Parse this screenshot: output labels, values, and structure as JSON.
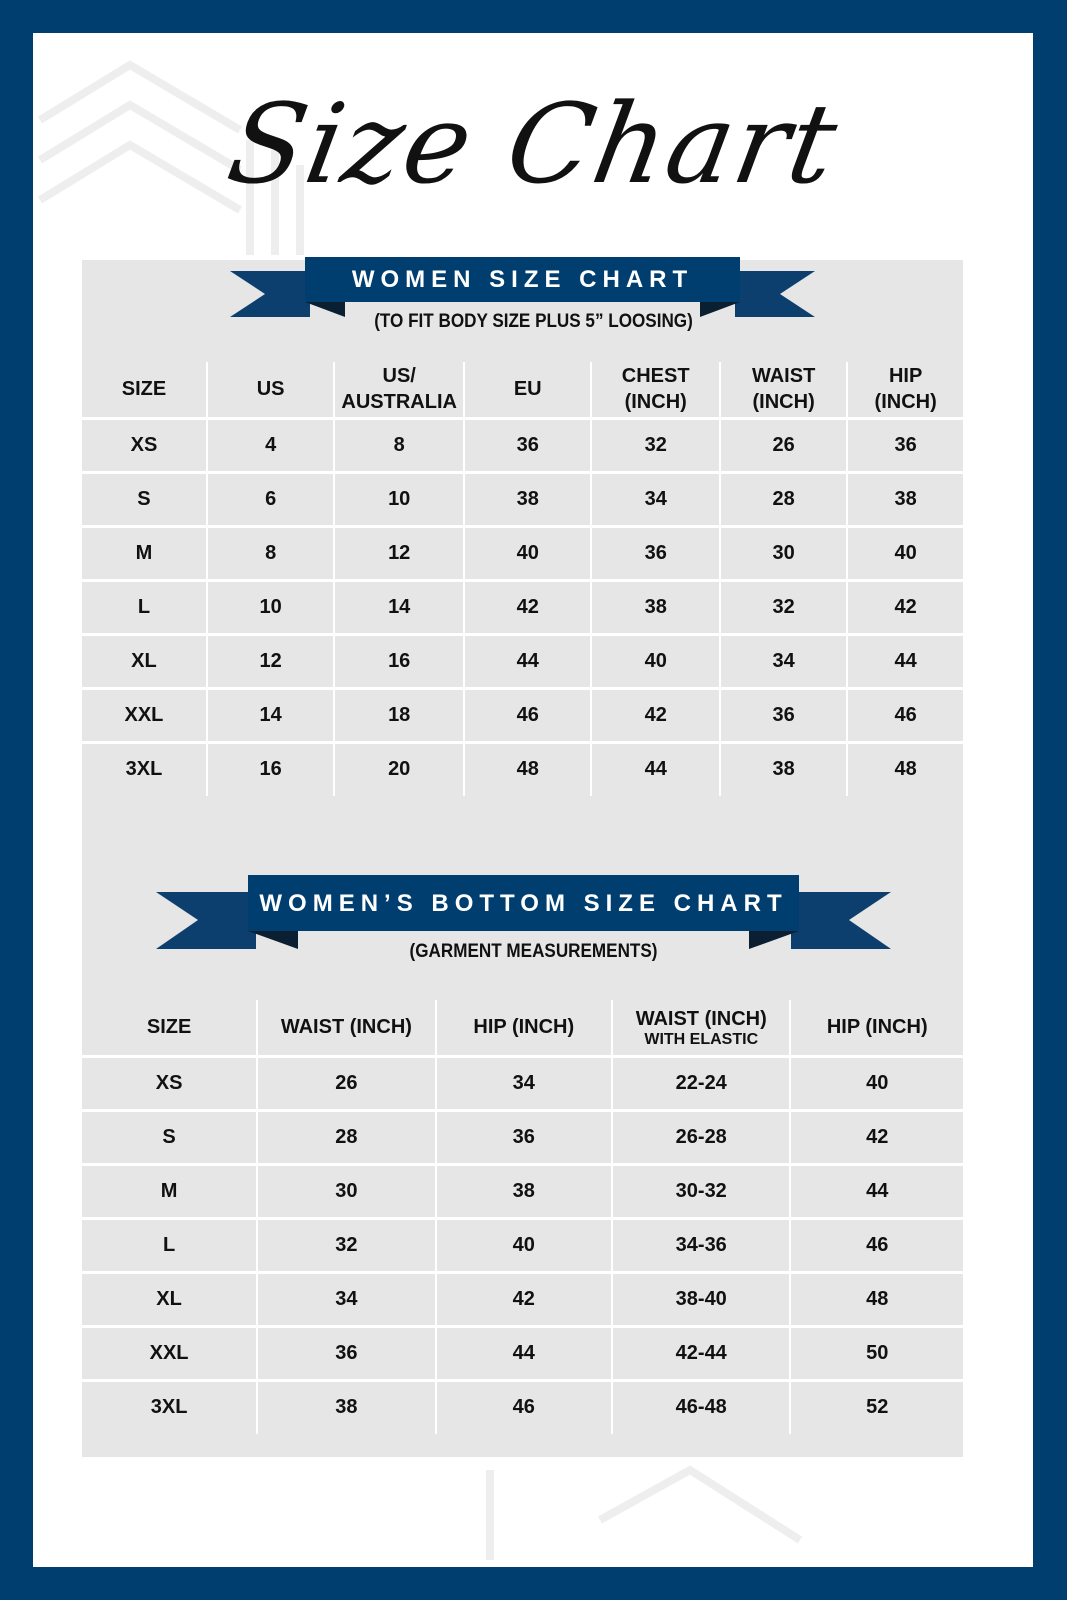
{
  "title": "Size Chart",
  "colors": {
    "navy": "#003e70",
    "panel": "#e6e6e6",
    "ribbon_dark": "#0b2a4a"
  },
  "women_top": {
    "banner": "WOMEN SIZE CHART",
    "subtitle": "(TO FIT BODY SIZE PLUS 5” LOOSING)",
    "headers": [
      [
        "SIZE"
      ],
      [
        "US"
      ],
      [
        "US/",
        "AUSTRALIA"
      ],
      [
        "EU"
      ],
      [
        "CHEST",
        "(INCH)"
      ],
      [
        "WAIST",
        "(INCH)"
      ],
      [
        "HIP",
        "(INCH)"
      ]
    ],
    "rows": [
      [
        "XS",
        "4",
        "8",
        "36",
        "32",
        "26",
        "36"
      ],
      [
        "S",
        "6",
        "10",
        "38",
        "34",
        "28",
        "38"
      ],
      [
        "M",
        "8",
        "12",
        "40",
        "36",
        "30",
        "40"
      ],
      [
        "L",
        "10",
        "14",
        "42",
        "38",
        "32",
        "42"
      ],
      [
        "XL",
        "12",
        "16",
        "44",
        "40",
        "34",
        "44"
      ],
      [
        "XXL",
        "14",
        "18",
        "46",
        "42",
        "36",
        "46"
      ],
      [
        "3XL",
        "16",
        "20",
        "48",
        "44",
        "38",
        "48"
      ]
    ]
  },
  "women_bottom": {
    "banner": "WOMEN’S BOTTOM SIZE CHART",
    "subtitle": "(GARMENT MEASUREMENTS)",
    "headers": [
      [
        "SIZE"
      ],
      [
        "WAIST (INCH)"
      ],
      [
        "HIP (INCH)"
      ],
      [
        "WAIST (INCH)",
        "WITH ELASTIC"
      ],
      [
        "HIP (INCH)"
      ]
    ],
    "rows": [
      [
        "XS",
        "26",
        "34",
        "22-24",
        "40"
      ],
      [
        "S",
        "28",
        "36",
        "26-28",
        "42"
      ],
      [
        "M",
        "30",
        "38",
        "30-32",
        "44"
      ],
      [
        "L",
        "32",
        "40",
        "34-36",
        "46"
      ],
      [
        "XL",
        "34",
        "42",
        "38-40",
        "48"
      ],
      [
        "XXL",
        "36",
        "44",
        "42-44",
        "50"
      ],
      [
        "3XL",
        "38",
        "46",
        "46-48",
        "52"
      ]
    ]
  }
}
